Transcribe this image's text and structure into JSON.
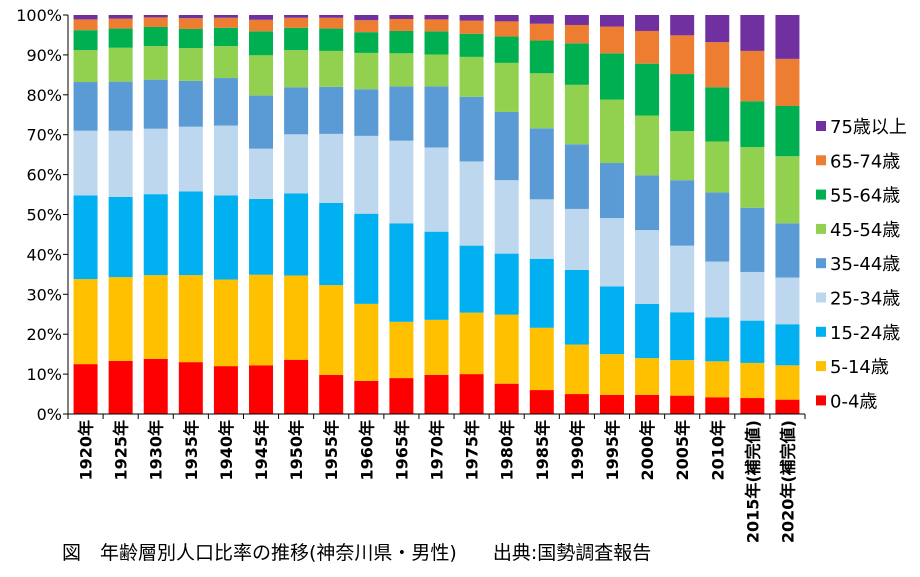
{
  "chart_data": {
    "type": "bar",
    "stacked": true,
    "categories": [
      "1920年",
      "1925年",
      "1930年",
      "1935年",
      "1940年",
      "1945年",
      "1950年",
      "1955年",
      "1960年",
      "1965年",
      "1970年",
      "1975年",
      "1980年",
      "1985年",
      "1990年",
      "1995年",
      "2000年",
      "2005年",
      "2010年",
      "2015年(補完値)",
      "2020年(補完値)"
    ],
    "ylim": [
      0,
      100
    ],
    "yticks": [
      "0%",
      "10%",
      "20%",
      "30%",
      "40%",
      "50%",
      "60%",
      "70%",
      "80%",
      "90%",
      "100%"
    ],
    "legend_position": "right",
    "grid": false,
    "series": [
      {
        "name": "0-4歳",
        "color": "#ff0000",
        "values": [
          12.5,
          13.3,
          13.8,
          13.0,
          12.0,
          12.2,
          13.6,
          9.8,
          8.3,
          9.0,
          9.8,
          10.0,
          7.6,
          6.0,
          5.0,
          4.8,
          4.8,
          4.6,
          4.2,
          4.0,
          3.6
        ]
      },
      {
        "name": "5-14歳",
        "color": "#ffc000",
        "values": [
          21.3,
          21.0,
          21.0,
          21.8,
          21.7,
          22.7,
          21.1,
          22.5,
          19.3,
          14.1,
          13.8,
          15.4,
          17.3,
          15.6,
          12.4,
          10.2,
          9.2,
          8.9,
          9.0,
          8.8,
          8.6
        ]
      },
      {
        "name": "15-24歳",
        "color": "#00b0f0",
        "values": [
          21.0,
          20.1,
          20.3,
          21.0,
          21.1,
          19.0,
          20.6,
          20.6,
          22.6,
          24.7,
          22.1,
          16.8,
          15.3,
          17.3,
          18.7,
          17.0,
          13.6,
          12.0,
          11.0,
          10.6,
          10.3
        ]
      },
      {
        "name": "25-34歳",
        "color": "#bdd7ee",
        "values": [
          16.2,
          16.6,
          16.4,
          16.2,
          17.5,
          12.6,
          14.8,
          17.3,
          19.5,
          20.7,
          21.1,
          21.1,
          18.4,
          14.9,
          15.3,
          17.1,
          18.5,
          16.7,
          14.0,
          12.2,
          11.7
        ]
      },
      {
        "name": "35-44歳",
        "color": "#5b9bd5",
        "values": [
          12.2,
          12.3,
          12.3,
          11.5,
          11.9,
          13.3,
          11.8,
          11.8,
          11.7,
          13.6,
          15.3,
          16.2,
          17.1,
          17.8,
          16.2,
          13.8,
          13.7,
          16.4,
          17.3,
          16.1,
          13.6
        ]
      },
      {
        "name": "45-54歳",
        "color": "#92d050",
        "values": [
          8.0,
          8.5,
          8.4,
          8.2,
          8.0,
          10.1,
          9.3,
          9.0,
          9.1,
          8.3,
          8.0,
          10.0,
          12.3,
          13.8,
          14.9,
          15.9,
          15.0,
          12.3,
          12.8,
          15.2,
          16.8
        ]
      },
      {
        "name": "55-64歳",
        "color": "#00b050",
        "values": [
          5.0,
          4.8,
          4.8,
          4.8,
          4.6,
          6.0,
          5.6,
          5.6,
          5.2,
          5.6,
          5.8,
          5.8,
          6.6,
          8.2,
          10.4,
          11.6,
          13.0,
          14.3,
          13.6,
          11.5,
          12.6
        ]
      },
      {
        "name": "65-74歳",
        "color": "#ed7d31",
        "values": [
          2.7,
          2.5,
          2.4,
          2.7,
          2.5,
          2.9,
          2.5,
          2.7,
          3.0,
          3.0,
          3.0,
          3.3,
          3.8,
          4.2,
          4.6,
          6.7,
          8.2,
          9.7,
          11.3,
          12.6,
          11.8
        ]
      },
      {
        "name": "75歳以上",
        "color": "#7030a0",
        "values": [
          1.1,
          0.9,
          0.6,
          0.8,
          0.7,
          1.2,
          0.7,
          0.7,
          1.3,
          1.0,
          1.1,
          1.4,
          1.6,
          2.2,
          2.5,
          2.9,
          4.0,
          5.1,
          6.8,
          9.0,
          11.0
        ]
      }
    ]
  },
  "caption": {
    "title": "図　年齢層別人口比率の推移(神奈川県・男性)",
    "source": "出典:国勢調査報告"
  }
}
